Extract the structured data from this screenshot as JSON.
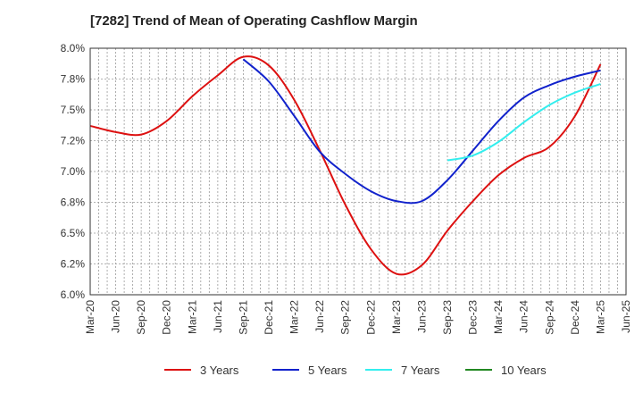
{
  "chart_data": {
    "type": "line",
    "title": "[7282]  Trend of Mean of Operating Cashflow Margin",
    "xlabel": "",
    "ylabel": "",
    "ylim": [
      6.0,
      8.0
    ],
    "yticks": [
      6.0,
      6.25,
      6.5,
      6.75,
      7.0,
      7.25,
      7.5,
      7.75,
      8.0
    ],
    "ytick_labels": [
      "6.0%",
      "6.2%",
      "6.5%",
      "6.8%",
      "7.0%",
      "7.2%",
      "7.5%",
      "7.8%",
      "8.0%"
    ],
    "categories": [
      "Mar-20",
      "Jun-20",
      "Sep-20",
      "Dec-20",
      "Mar-21",
      "Jun-21",
      "Sep-21",
      "Dec-21",
      "Mar-22",
      "Jun-22",
      "Sep-22",
      "Dec-22",
      "Mar-23",
      "Jun-23",
      "Sep-23",
      "Dec-23",
      "Mar-24",
      "Jun-24",
      "Sep-24",
      "Dec-24",
      "Mar-25",
      "Jun-25"
    ],
    "grid": true,
    "legend_position": "bottom",
    "series": [
      {
        "name": "3 Years",
        "color": "#dd1111",
        "values": [
          7.37,
          7.32,
          7.3,
          7.41,
          7.61,
          7.78,
          7.93,
          7.86,
          7.58,
          7.17,
          6.73,
          6.37,
          6.17,
          6.24,
          6.52,
          6.76,
          6.97,
          7.11,
          7.2,
          7.45,
          7.87,
          null
        ]
      },
      {
        "name": "5 Years",
        "color": "#1122cc",
        "values": [
          null,
          null,
          null,
          null,
          null,
          null,
          7.91,
          7.73,
          7.45,
          7.16,
          6.98,
          6.84,
          6.76,
          6.76,
          6.93,
          7.17,
          7.41,
          7.6,
          7.7,
          7.77,
          7.82,
          null
        ]
      },
      {
        "name": "7 Years",
        "color": "#33eeee",
        "values": [
          null,
          null,
          null,
          null,
          null,
          null,
          null,
          null,
          null,
          null,
          null,
          null,
          null,
          null,
          7.09,
          7.13,
          7.24,
          7.4,
          7.54,
          7.64,
          7.71,
          null
        ]
      },
      {
        "name": "10 Years",
        "color": "#228822",
        "values": [
          null,
          null,
          null,
          null,
          null,
          null,
          null,
          null,
          null,
          null,
          null,
          null,
          null,
          null,
          null,
          null,
          null,
          null,
          null,
          null,
          null,
          null
        ]
      }
    ]
  }
}
